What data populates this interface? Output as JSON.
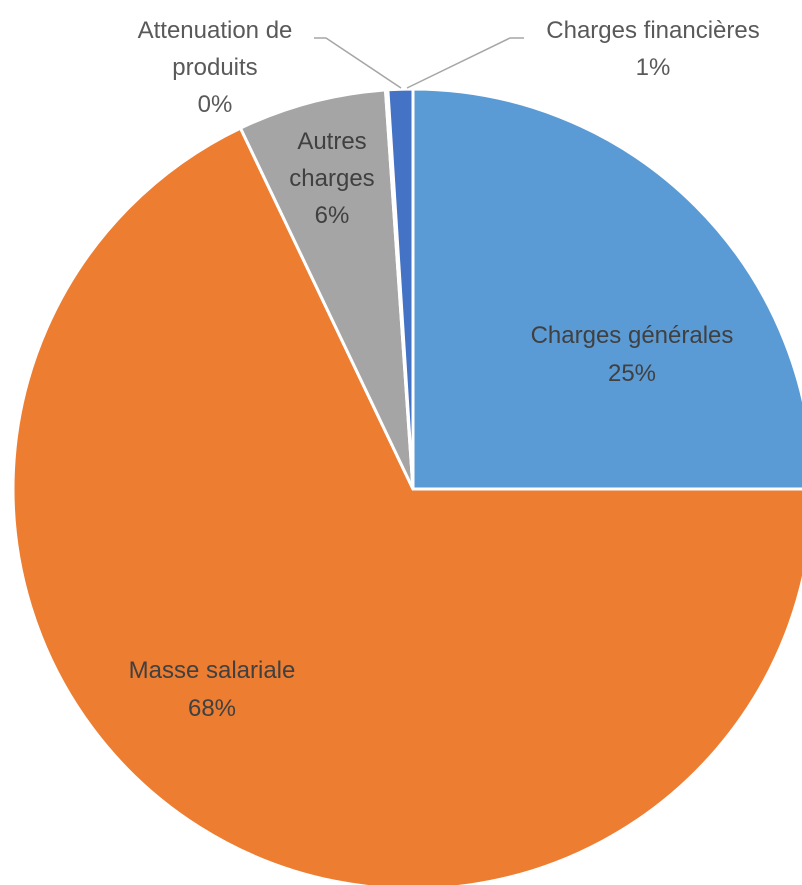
{
  "chart_data": {
    "type": "pie",
    "title": "",
    "slices": [
      {
        "label": "Charges générales",
        "percent_label": "25%",
        "value": 25,
        "color": "#5b9bd5"
      },
      {
        "label": "Masse salariale",
        "percent_label": "68%",
        "value": 68,
        "color": "#ed7d31"
      },
      {
        "label": "Autres charges",
        "percent_label": "6%",
        "value": 6,
        "color": "#a5a5a5"
      },
      {
        "label": "Attenuation de produits",
        "percent_label": "0%",
        "value": 0,
        "color": "#ffc000"
      },
      {
        "label": "Charges financières",
        "percent_label": "1%",
        "value": 1,
        "color": "#4472c4"
      }
    ],
    "label_lines": {
      "generales": [
        "Charges générales",
        "25%"
      ],
      "masse": [
        "Masse salariale",
        "68%"
      ],
      "autres": [
        "Autres",
        "charges",
        "6%"
      ],
      "attenuation": [
        "Attenuation de",
        "produits",
        "0%"
      ],
      "financieres": [
        "Charges financières",
        "1%"
      ]
    },
    "start_angle_deg": 0,
    "direction": "clockwise",
    "legend": "none"
  }
}
